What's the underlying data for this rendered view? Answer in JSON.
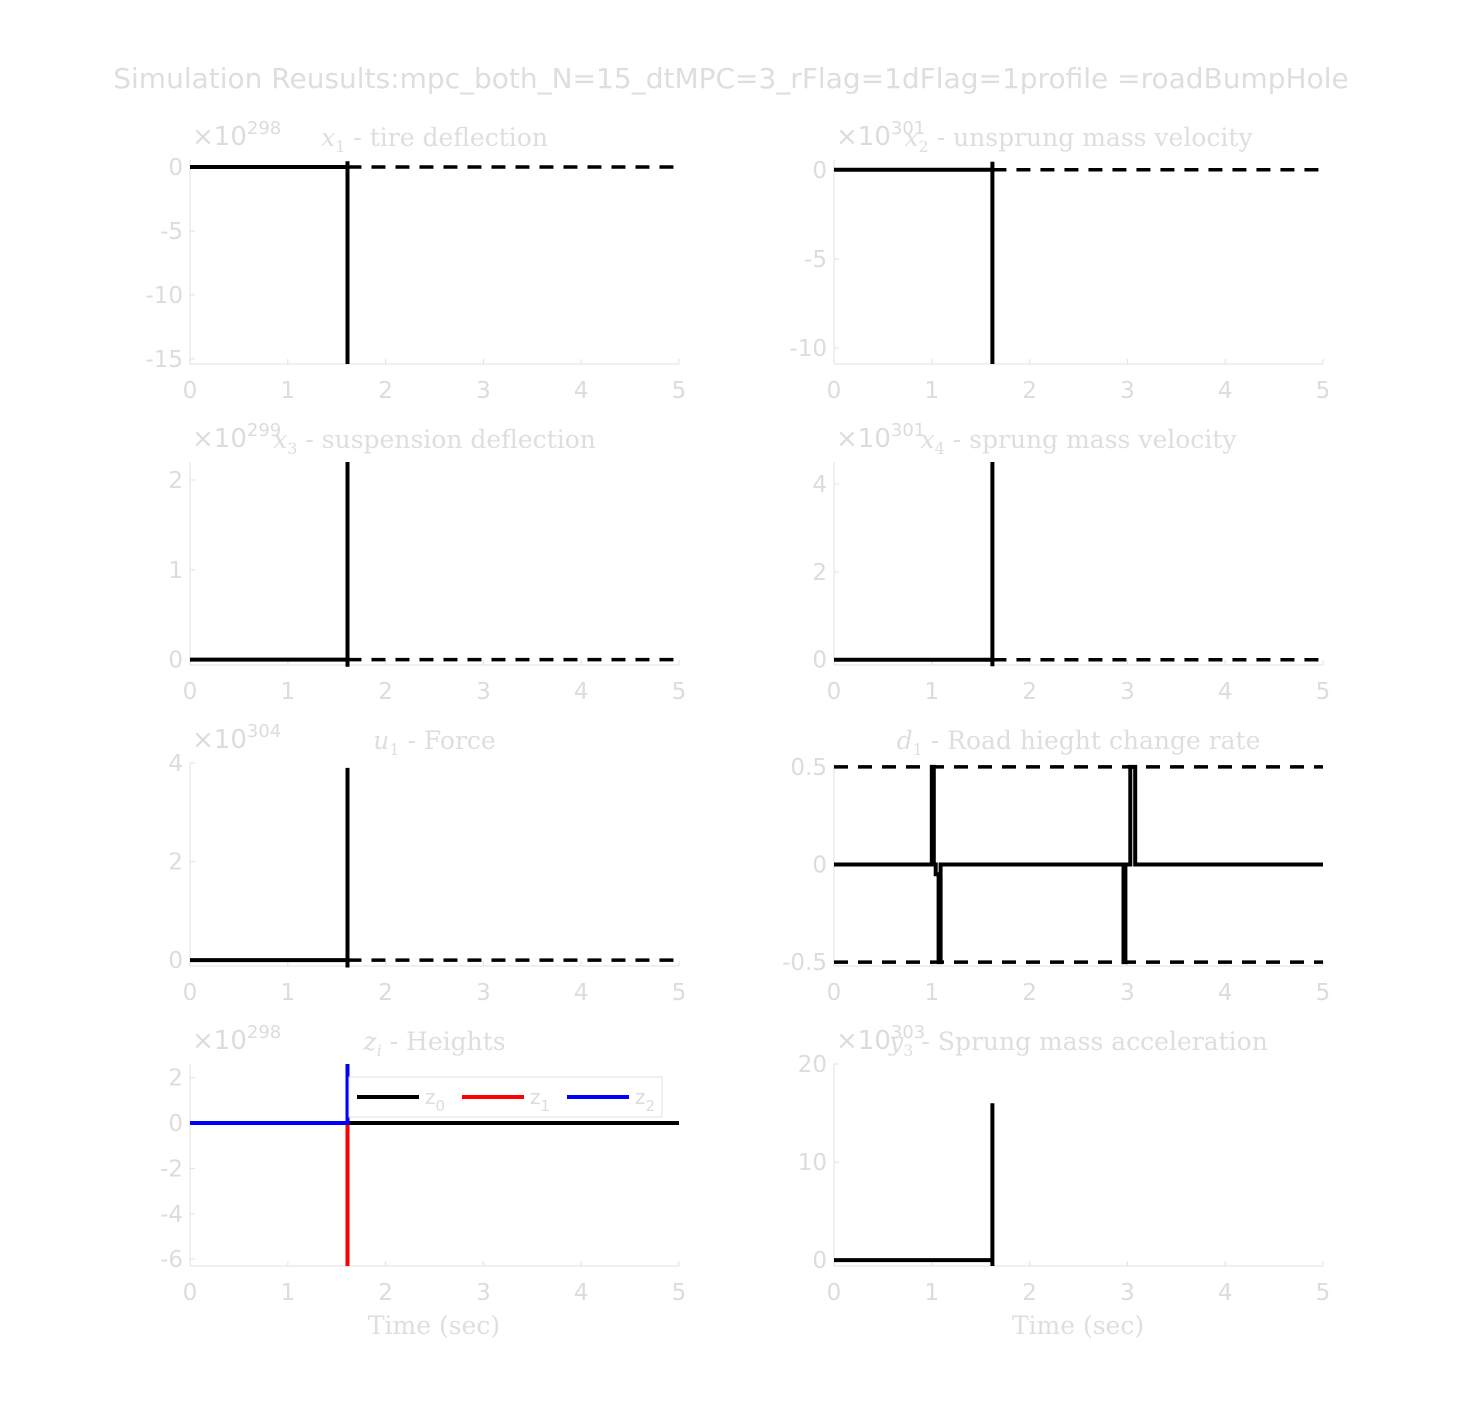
{
  "figure": {
    "title": "Simulation Reusults:mpc_both_N=15_dtMPC=3_rFlag=1dFlag=1profile =roadBumpHole"
  },
  "chart_data": [
    {
      "id": "p1",
      "type": "line",
      "title": {
        "var": "x",
        "sub": "1",
        "rest": " - tire deflection"
      },
      "exponent": "298",
      "xlim": [
        0,
        5
      ],
      "ylim": [
        -15.4,
        0.55
      ],
      "xticks": [
        "0",
        "1",
        "2",
        "3",
        "4",
        "5"
      ],
      "yticks": [
        {
          "v": 0,
          "label": "0"
        },
        {
          "v": -5,
          "label": "-5"
        },
        {
          "v": -10,
          "label": "-10"
        },
        {
          "v": -15,
          "label": "-15"
        }
      ],
      "series": [
        {
          "color": "#000000",
          "width": 4,
          "x": [
            0,
            1.61
          ],
          "y": [
            0,
            0
          ]
        },
        {
          "color": "#000000",
          "width": 4,
          "x": [
            1.61,
            1.61
          ],
          "y": [
            0.45,
            -15.4
          ]
        }
      ],
      "refs": [
        {
          "y": 0,
          "from": 1.61,
          "to": 5
        }
      ]
    },
    {
      "id": "p2",
      "type": "line",
      "title": {
        "var": "x",
        "sub": "2",
        "rest": " - unsprung mass velocity"
      },
      "exponent": "301",
      "xlim": [
        0,
        5
      ],
      "ylim": [
        -10.9,
        0.55
      ],
      "xticks": [
        "0",
        "1",
        "2",
        "3",
        "4",
        "5"
      ],
      "yticks": [
        {
          "v": 0,
          "label": "0"
        },
        {
          "v": -5,
          "label": "-5"
        },
        {
          "v": -10,
          "label": "-10"
        }
      ],
      "series": [
        {
          "color": "#000000",
          "width": 4,
          "x": [
            0,
            1.62
          ],
          "y": [
            0,
            0
          ]
        },
        {
          "color": "#000000",
          "width": 4,
          "x": [
            1.62,
            1.62
          ],
          "y": [
            0.45,
            -10.9
          ]
        }
      ],
      "refs": [
        {
          "y": 0,
          "from": 1.62,
          "to": 5
        }
      ]
    },
    {
      "id": "p3",
      "type": "line",
      "title": {
        "var": "x",
        "sub": "3",
        "rest": " - suspension deflection"
      },
      "exponent": "299",
      "xlim": [
        0,
        5
      ],
      "ylim": [
        -0.06,
        2.2
      ],
      "xticks": [
        "0",
        "1",
        "2",
        "3",
        "4",
        "5"
      ],
      "yticks": [
        {
          "v": 0,
          "label": "0"
        },
        {
          "v": 1,
          "label": "1"
        },
        {
          "v": 2,
          "label": "2"
        }
      ],
      "series": [
        {
          "color": "#000000",
          "width": 4,
          "x": [
            0,
            1.61
          ],
          "y": [
            0,
            0
          ]
        },
        {
          "color": "#000000",
          "width": 4,
          "x": [
            1.61,
            1.61
          ],
          "y": [
            -0.08,
            2.2
          ]
        }
      ],
      "refs": [
        {
          "y": 0,
          "from": 1.61,
          "to": 5
        }
      ]
    },
    {
      "id": "p4",
      "type": "line",
      "title": {
        "var": "x",
        "sub": "4",
        "rest": " - sprung mass velocity"
      },
      "exponent": "301",
      "xlim": [
        0,
        5
      ],
      "ylim": [
        -0.12,
        4.5
      ],
      "xticks": [
        "0",
        "1",
        "2",
        "3",
        "4",
        "5"
      ],
      "yticks": [
        {
          "v": 0,
          "label": "0"
        },
        {
          "v": 2,
          "label": "2"
        },
        {
          "v": 4,
          "label": "4"
        }
      ],
      "series": [
        {
          "color": "#000000",
          "width": 4,
          "x": [
            0,
            1.62
          ],
          "y": [
            0,
            0
          ]
        },
        {
          "color": "#000000",
          "width": 4,
          "x": [
            1.62,
            1.62
          ],
          "y": [
            -0.15,
            4.5
          ]
        }
      ],
      "refs": [
        {
          "y": 0,
          "from": 1.62,
          "to": 5
        }
      ]
    },
    {
      "id": "p5",
      "type": "line",
      "title": {
        "var": "u",
        "sub": "1",
        "rest": " - Force"
      },
      "exponent": "304",
      "xlim": [
        0,
        5
      ],
      "ylim": [
        -0.12,
        4
      ],
      "xticks": [
        "0",
        "1",
        "2",
        "3",
        "4",
        "5"
      ],
      "yticks": [
        {
          "v": 0,
          "label": "0"
        },
        {
          "v": 2,
          "label": "2"
        },
        {
          "v": 4,
          "label": "4"
        }
      ],
      "series": [
        {
          "color": "#000000",
          "width": 4,
          "x": [
            0,
            1.61
          ],
          "y": [
            0,
            0
          ]
        },
        {
          "color": "#000000",
          "width": 4,
          "x": [
            1.61,
            1.61
          ],
          "y": [
            -0.15,
            3.9
          ]
        }
      ],
      "refs": [
        {
          "y": 0,
          "from": 1.61,
          "to": 5
        }
      ]
    },
    {
      "id": "p6",
      "type": "line",
      "title": {
        "var": "d",
        "sub": "1",
        "rest": " - Road hieght change rate"
      },
      "exponent": "",
      "xlim": [
        0,
        5
      ],
      "ylim": [
        -0.52,
        0.52
      ],
      "xticks": [
        "0",
        "1",
        "2",
        "3",
        "4",
        "5"
      ],
      "yticks": [
        {
          "v": 0.5,
          "label": "0.5"
        },
        {
          "v": 0,
          "label": "0"
        },
        {
          "v": -0.5,
          "label": "-0.5"
        }
      ],
      "series": [
        {
          "color": "#000000",
          "width": 4,
          "x": [
            0,
            1.0,
            1.0,
            1.02,
            1.02,
            1.04,
            1.04,
            1.07,
            1.07,
            1.09,
            1.09,
            1.12,
            1.12,
            2.96,
            2.96,
            2.98,
            2.98,
            3.01,
            3.01,
            3.03,
            3.03,
            3.06,
            3.06,
            3.08,
            3.08,
            3.1,
            3.1,
            5
          ],
          "y": [
            0,
            0,
            0.5,
            0.5,
            0,
            0,
            -0.05,
            -0.05,
            -0.5,
            -0.5,
            0,
            0,
            0,
            0,
            -0.5,
            -0.5,
            0,
            0,
            0,
            0,
            0.5,
            0.5,
            0.5,
            0.5,
            0,
            0,
            0,
            0
          ]
        }
      ],
      "refs": [
        {
          "y": 0.5,
          "from": 0,
          "to": 5
        },
        {
          "y": -0.5,
          "from": 0,
          "to": 5
        }
      ]
    },
    {
      "id": "p7",
      "type": "line",
      "title": {
        "var": "z",
        "sub": "i",
        "rest": " - Heights"
      },
      "exponent": "298",
      "xlim": [
        0,
        5
      ],
      "ylim": [
        -6.3,
        2.6
      ],
      "xticks": [
        "0",
        "1",
        "2",
        "3",
        "4",
        "5"
      ],
      "yticks": [
        {
          "v": 2,
          "label": "2"
        },
        {
          "v": 0,
          "label": "0"
        },
        {
          "v": -2,
          "label": "-2"
        },
        {
          "v": -4,
          "label": "-4"
        },
        {
          "v": -6,
          "label": "-6"
        }
      ],
      "series": [
        {
          "name": "z",
          "sub": "0",
          "color": "#000000",
          "width": 4,
          "x": [
            0,
            5
          ],
          "y": [
            0,
            0
          ]
        },
        {
          "name": "z",
          "sub": "1",
          "color": "#ff0000",
          "width": 4,
          "x": [
            0,
            1.61,
            1.61
          ],
          "y": [
            0,
            0,
            -6.3
          ]
        },
        {
          "name": "z",
          "sub": "2",
          "color": "#0000ff",
          "width": 4,
          "x": [
            0,
            1.61,
            1.61
          ],
          "y": [
            0,
            0,
            2.6
          ]
        }
      ],
      "legend": "inside-top",
      "refs": []
    },
    {
      "id": "p8",
      "type": "line",
      "title": {
        "var": "y",
        "sub": "3",
        "rest": " - Sprung mass acceleration"
      },
      "exponent": "303",
      "xlim": [
        0,
        5
      ],
      "ylim": [
        -0.6,
        20
      ],
      "xticks": [
        "0",
        "1",
        "2",
        "3",
        "4",
        "5"
      ],
      "yticks": [
        {
          "v": 20,
          "label": "20"
        },
        {
          "v": 10,
          "label": "10"
        },
        {
          "v": 0,
          "label": "0"
        }
      ],
      "series": [
        {
          "color": "#000000",
          "width": 4,
          "x": [
            0,
            1.62
          ],
          "y": [
            0,
            0
          ]
        },
        {
          "color": "#000000",
          "width": 4,
          "x": [
            1.62,
            1.62
          ],
          "y": [
            -0.6,
            16
          ]
        }
      ],
      "refs": []
    }
  ],
  "xlabels": {
    "left": "Time (sec)",
    "right": "Time (sec)"
  }
}
